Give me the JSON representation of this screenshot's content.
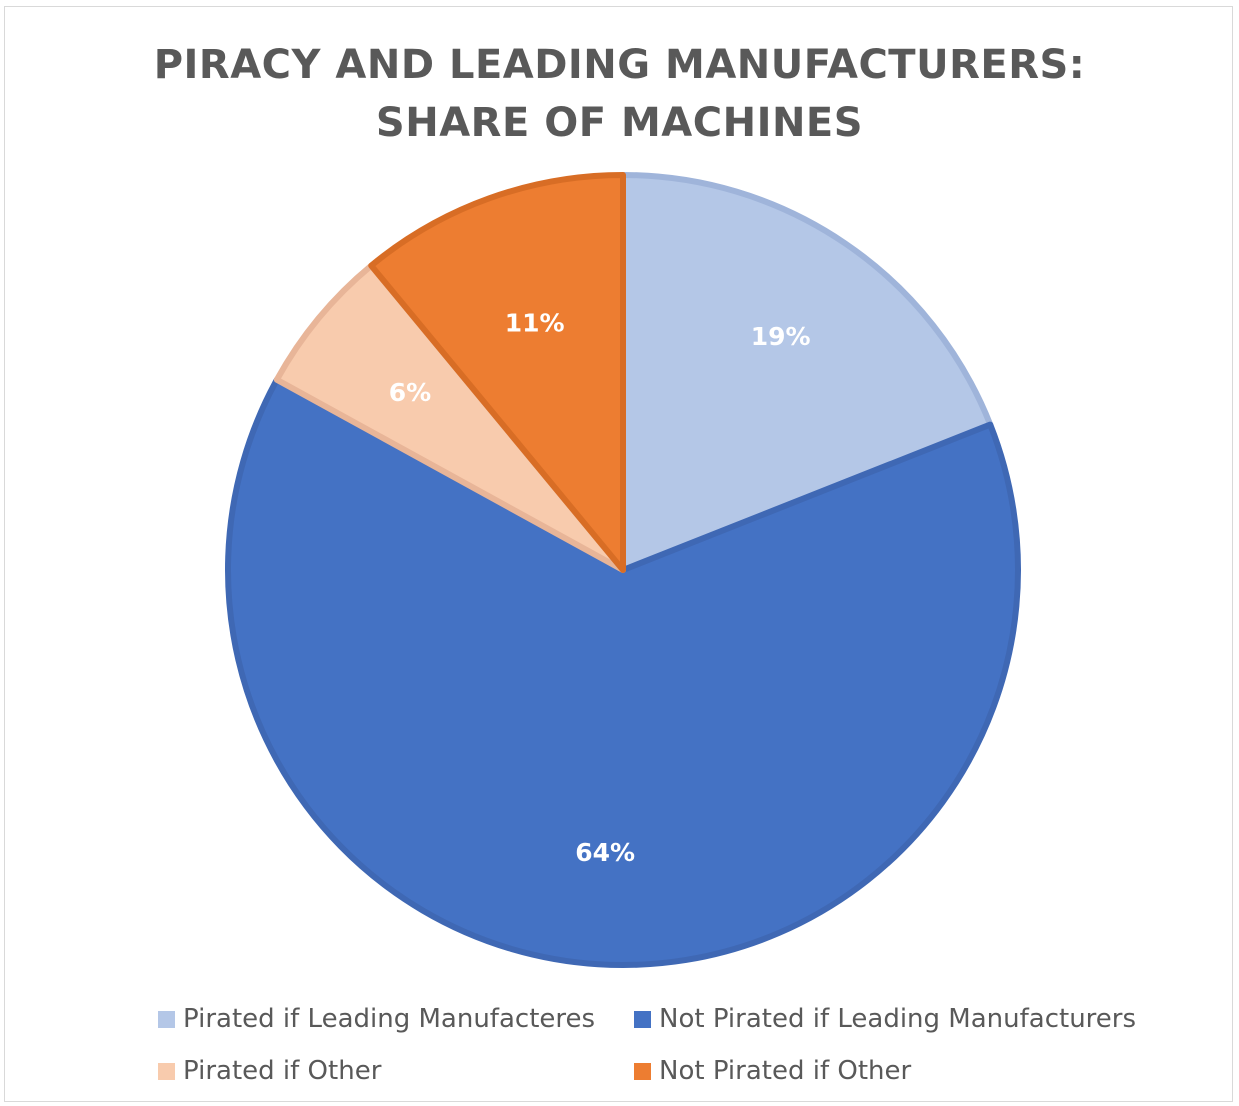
{
  "chart_data": {
    "type": "pie",
    "title": "PIRACY AND LEADING MANUFACTURERS: SHARE OF MACHINES",
    "title_lines": [
      "PIRACY AND LEADING MANUFACTURERS:",
      "SHARE OF MACHINES"
    ],
    "slices": [
      {
        "label": "Pirated if Leading Manufacteres",
        "value": 19,
        "data_label": "19%",
        "color": "#b4c7e7"
      },
      {
        "label": "Not Pirated if Leading Manufacturers",
        "value": 64,
        "data_label": "64%",
        "color": "#4472c4"
      },
      {
        "label": "Pirated if Other",
        "value": 6,
        "data_label": "6%",
        "color": "#f8cbad"
      },
      {
        "label": "Not Pirated if Other",
        "value": 11,
        "data_label": "11%",
        "color": "#ed7d31"
      }
    ],
    "legend_position": "bottom",
    "start_angle": "12 o'clock",
    "direction": "clockwise"
  }
}
